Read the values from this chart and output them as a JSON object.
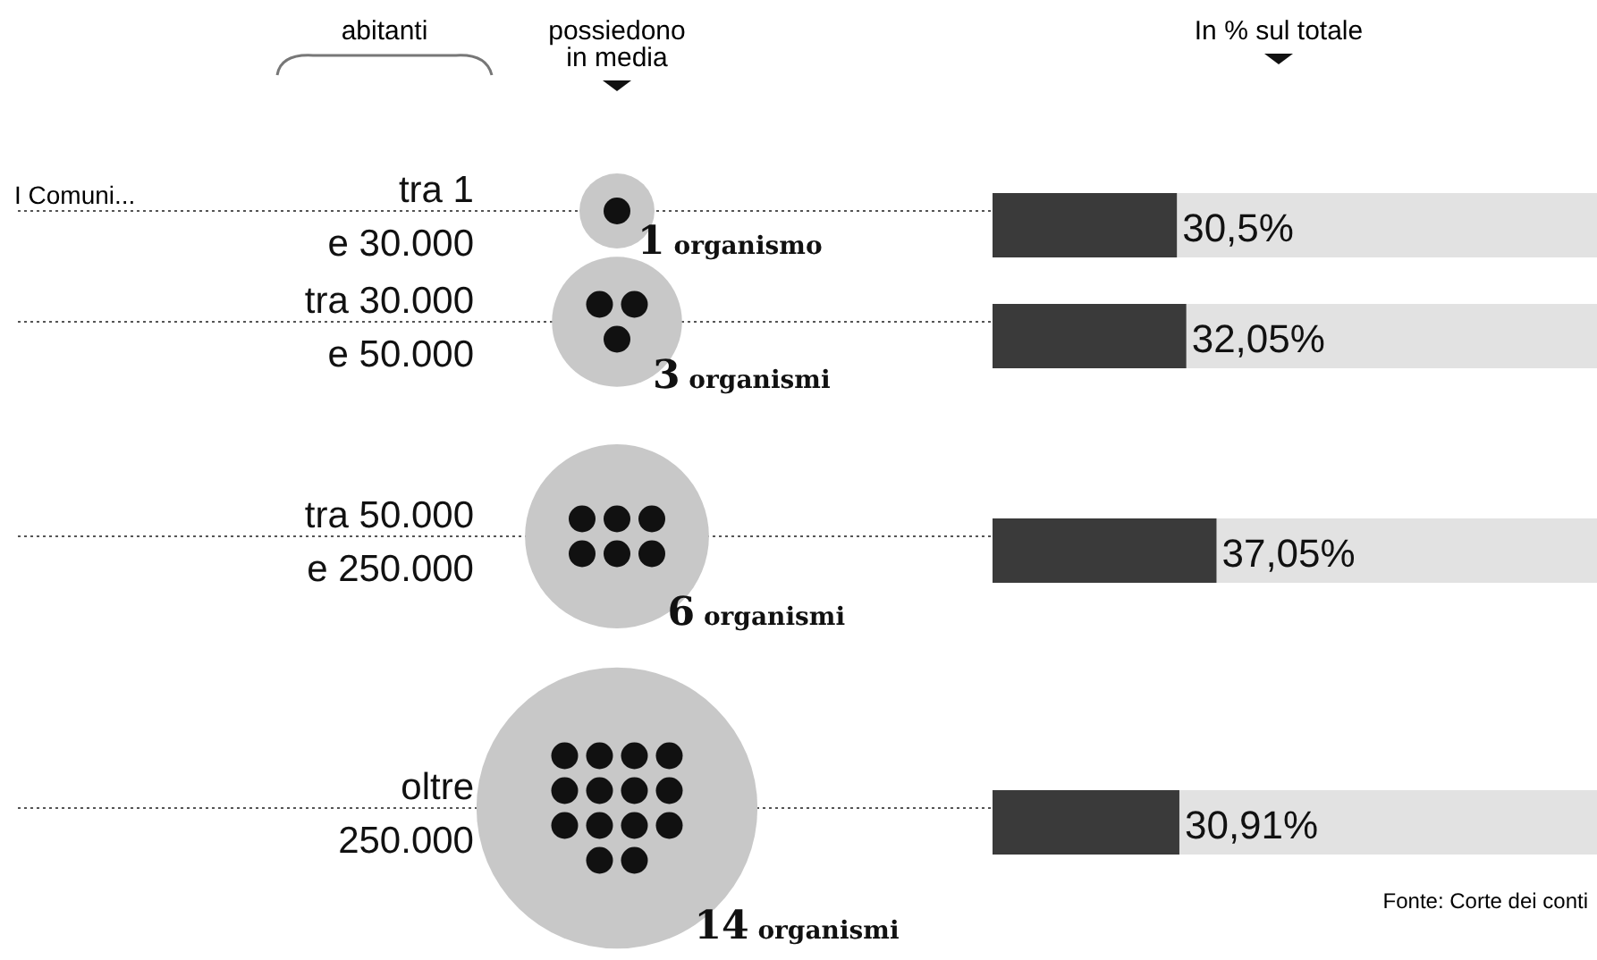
{
  "chart_data": [
    {
      "type": "bar",
      "orientation": "horizontal",
      "title": "In % sul totale",
      "ylabel": "abitanti",
      "categories": [
        "tra 1\ne 30.000",
        "tra 30.000\ne 50.000",
        "tra 50.000\ne 250.000",
        "oltre\n250.000"
      ],
      "values": [
        30.5,
        32.05,
        37.05,
        30.91
      ],
      "value_labels": [
        "30,5%",
        "32,05%",
        "37,05%",
        "30,91%"
      ],
      "color": "#3a3a3a",
      "xlim": [
        0,
        100
      ],
      "tick_labels": "y",
      "annotations": [
        "I Comuni...",
        "Fonte: Corte dei conti"
      ]
    },
    {
      "type": "other",
      "title": "possiedono in media",
      "values": [
        1,
        3,
        6,
        14
      ],
      "value_labels": [
        "1 organismo",
        "3 organismi",
        "6 organismi",
        "14 organismi"
      ],
      "color": "#c8c8c8"
    }
  ]
}
